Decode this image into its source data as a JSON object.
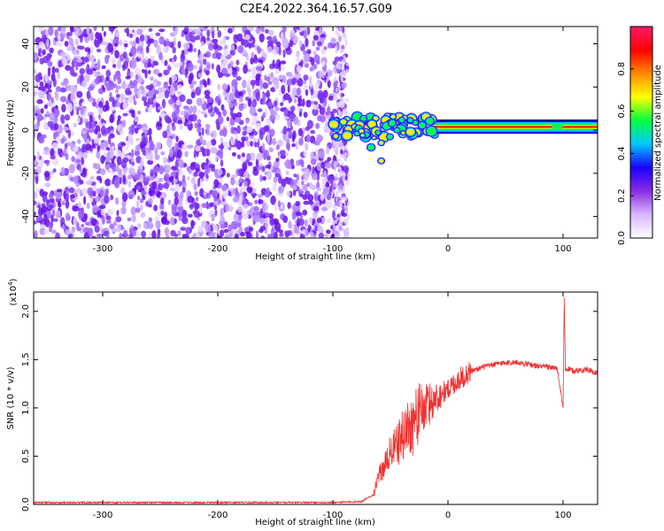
{
  "title": "C2E4.2022.364.16.57.G09",
  "chart_data": [
    {
      "type": "heatmap",
      "xlabel": "Height of straight line (km)",
      "ylabel": "Frequency (Hz)",
      "xlim": [
        -360,
        130
      ],
      "ylim": [
        -50,
        48
      ],
      "xticks": [
        -300,
        -200,
        -100,
        0,
        100
      ],
      "yticks": [
        -40,
        -20,
        0,
        20,
        40
      ],
      "noise_region_x": [
        -360,
        -88
      ],
      "signal_line_y": 1.5,
      "signal_start_x": -100,
      "colorbar": {
        "label": "Normalized spectral amplitude",
        "range": [
          0.0,
          1.0
        ],
        "ticks": [
          "0.0",
          "0.2",
          "0.4",
          "0.6",
          "0.8"
        ],
        "tick_values": [
          0.0,
          0.2,
          0.4,
          0.6,
          0.8
        ],
        "colors": [
          "#ffffff",
          "#d8b8ff",
          "#8a2be2",
          "#1a00ff",
          "#00c8ff",
          "#00ff40",
          "#ffff00",
          "#ff8800",
          "#ff0000",
          "#ff1a66"
        ]
      }
    },
    {
      "type": "line",
      "xlabel": "Height of straight line (km)",
      "ylabel": "SNR (10 * v/v)",
      "y_multiplier": "(x10",
      "y_multiplier_exp": "4",
      "xlim": [
        -360,
        130
      ],
      "ylim": [
        0,
        2.2
      ],
      "xticks": [
        -300,
        -200,
        -100,
        0,
        100
      ],
      "yticks": [
        "0.0",
        "0.5",
        "1.0",
        "1.5",
        "2.0"
      ],
      "series": [
        {
          "color": "#ee3333",
          "x": [
            -360,
            -300,
            -200,
            -100,
            -75,
            -65,
            -60,
            -55,
            -50,
            -45,
            -40,
            -35,
            -30,
            -25,
            -20,
            -15,
            -10,
            -5,
            0,
            10,
            20,
            30,
            40,
            50,
            60,
            70,
            80,
            90,
            95,
            100,
            101,
            102,
            105,
            110,
            120,
            130
          ],
          "y": [
            0.02,
            0.02,
            0.02,
            0.02,
            0.03,
            0.1,
            0.3,
            0.4,
            0.55,
            0.6,
            0.7,
            0.8,
            0.85,
            0.95,
            1.0,
            1.05,
            1.1,
            1.15,
            1.2,
            1.3,
            1.38,
            1.42,
            1.45,
            1.47,
            1.47,
            1.45,
            1.43,
            1.42,
            1.4,
            1.0,
            2.15,
            1.4,
            1.4,
            1.38,
            1.4,
            1.36
          ]
        }
      ]
    }
  ]
}
